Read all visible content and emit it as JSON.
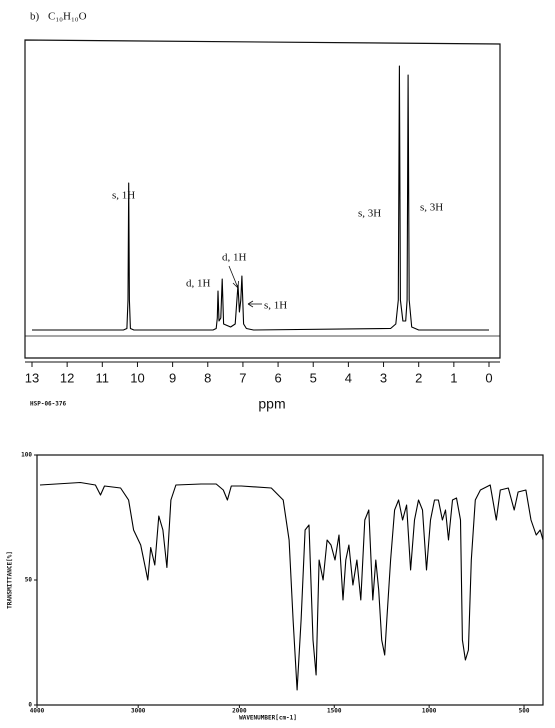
{
  "chart_data": [
    {
      "type": "line",
      "label": "b)",
      "title": "C₁₀H₁₀O",
      "xlabel": "ppm",
      "code": "HSP-06-376",
      "xlim": [
        13,
        0
      ],
      "ylim": [
        0,
        100
      ],
      "xticks": [
        13,
        12,
        11,
        10,
        9,
        8,
        7,
        6,
        5,
        4,
        3,
        2,
        1,
        0
      ],
      "color": "#000000",
      "x": [
        13,
        10.4,
        10.3,
        10.27,
        10.25,
        10.23,
        10.2,
        10.1,
        7.85,
        7.76,
        7.73,
        7.71,
        7.68,
        7.63,
        7.59,
        7.55,
        7.35,
        7.22,
        7.17,
        7.14,
        7.1,
        7.06,
        7.03,
        6.98,
        6.9,
        6.7,
        2.8,
        2.65,
        2.58,
        2.55,
        2.52,
        2.45,
        2.37,
        2.33,
        2.3,
        2.27,
        2.2,
        2.0,
        0
      ],
      "values": [
        10,
        10,
        10.5,
        20,
        59,
        20,
        10.5,
        10,
        10,
        10.5,
        14,
        23,
        13,
        14,
        27,
        12,
        11,
        12,
        20,
        25,
        16,
        20,
        28,
        12,
        10.5,
        10,
        10.5,
        12,
        20,
        98,
        20,
        13,
        13,
        20,
        95,
        20,
        11,
        10,
        10
      ],
      "annotations": [
        "s, 1H",
        "d, 1H",
        "d, 1H",
        "s, 1H",
        "s, 3H",
        "s, 3H"
      ]
    },
    {
      "type": "line",
      "xlabel": "WAVENUMBER[cm-1]",
      "ylabel": "TRANSMITTANCE[%]",
      "xlim": [
        4000,
        400
      ],
      "xbreak": 2000,
      "ylim": [
        0,
        100
      ],
      "xticks": [
        4000,
        3000,
        2000,
        1500,
        1000,
        500
      ],
      "yticks": [
        0,
        50,
        100
      ],
      "color": "#000000",
      "x": [
        3970,
        3572,
        3423,
        3373,
        3333,
        3174,
        3095,
        3045,
        2975,
        2935,
        2905,
        2876,
        2836,
        2796,
        2756,
        2716,
        2677,
        2627,
        2378,
        2229,
        2159,
        2119,
        2080,
        1990,
        1832,
        1769,
        1738,
        1717,
        1696,
        1675,
        1654,
        1633,
        1612,
        1596,
        1580,
        1559,
        1538,
        1517,
        1496,
        1475,
        1454,
        1439,
        1423,
        1402,
        1381,
        1360,
        1339,
        1318,
        1297,
        1281,
        1266,
        1250,
        1234,
        1223,
        1203,
        1182,
        1161,
        1140,
        1119,
        1098,
        1077,
        1056,
        1035,
        1014,
        993,
        972,
        951,
        930,
        914,
        898,
        877,
        856,
        835,
        825,
        809,
        793,
        778,
        757,
        730,
        678,
        646,
        625,
        583,
        552,
        531,
        490,
        463,
        436,
        415,
        400
      ],
      "values": [
        88,
        89,
        88,
        84,
        87.6,
        86.8,
        82,
        70,
        64,
        56,
        50,
        63,
        56,
        75.6,
        70,
        55,
        82,
        88,
        88.4,
        88.4,
        86,
        82,
        87.6,
        87.6,
        86.8,
        82,
        66,
        34,
        6,
        34,
        70,
        72,
        26,
        12,
        58,
        50,
        66,
        64,
        58,
        68,
        42,
        58,
        64,
        48,
        58,
        42,
        74,
        78,
        42,
        58,
        46,
        26,
        20,
        34,
        58,
        78,
        82,
        74,
        80,
        54,
        74,
        82,
        78,
        54,
        74,
        82,
        82,
        74,
        78,
        66,
        82,
        82.8,
        74,
        26,
        18,
        22,
        58,
        82,
        86,
        88,
        74,
        86,
        86.8,
        78,
        85.2,
        86,
        74,
        68,
        70,
        66
      ]
    }
  ]
}
